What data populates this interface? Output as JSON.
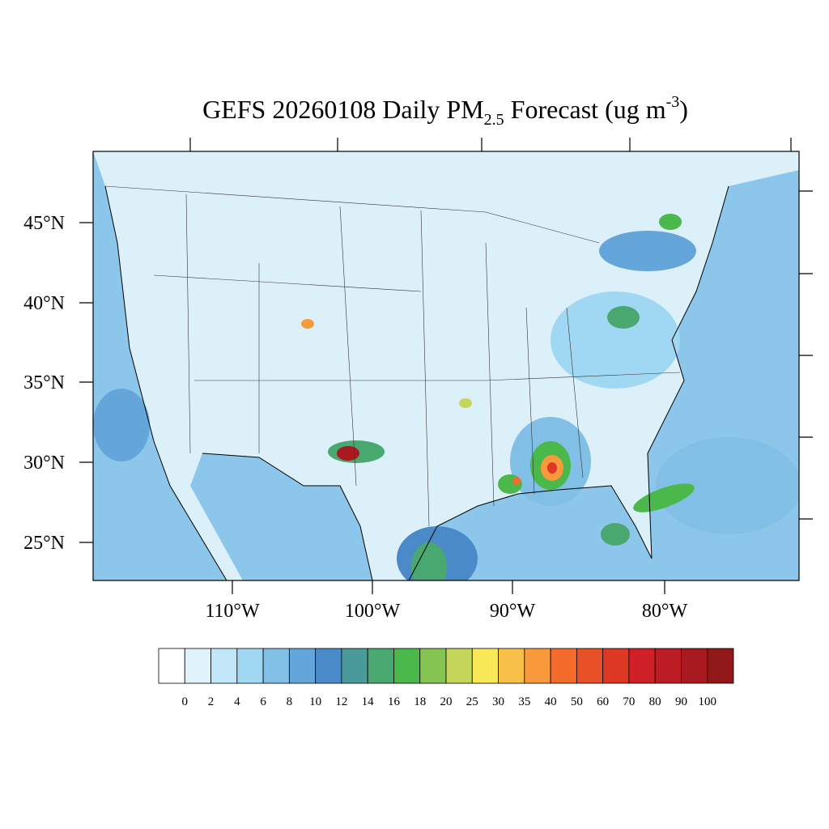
{
  "title": {
    "main": "GEFS 20260108 Daily PM",
    "subscript": "2.5",
    "middle": "Forecast (ug m",
    "superscript": "-3",
    "end": ")"
  },
  "map": {
    "lat_labels": [
      "45°N",
      "40°N",
      "35°N",
      "30°N",
      "25°N"
    ],
    "lon_labels": [
      "110°W",
      "100°W",
      "90°W",
      "80°W"
    ]
  },
  "colorbar": {
    "colors": [
      "#ffffff",
      "#e0f3fb",
      "#c0e6f7",
      "#a0d8f3",
      "#82bfe6",
      "#64a6da",
      "#4a8ac8",
      "#4a9a9a",
      "#48a870",
      "#4ab84a",
      "#84c450",
      "#c4d65a",
      "#f8e858",
      "#f8c048",
      "#f89a3c",
      "#f46c2c",
      "#e85028",
      "#dc3824",
      "#d02028",
      "#bc1c24",
      "#a81a20",
      "#901818"
    ],
    "labels": [
      "0",
      "2",
      "4",
      "6",
      "8",
      "10",
      "12",
      "14",
      "16",
      "18",
      "20",
      "25",
      "30",
      "35",
      "40",
      "50",
      "60",
      "70",
      "80",
      "90",
      "100"
    ]
  }
}
